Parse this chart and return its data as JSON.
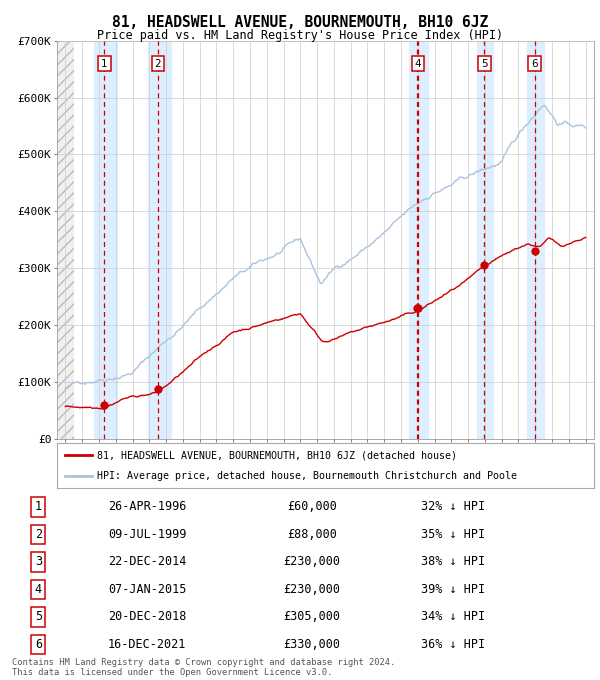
{
  "title": "81, HEADSWELL AVENUE, BOURNEMOUTH, BH10 6JZ",
  "subtitle": "Price paid vs. HM Land Registry's House Price Index (HPI)",
  "sales": [
    {
      "label": "1",
      "date": "1996-04-26",
      "price": 60000,
      "x": 1996.32
    },
    {
      "label": "2",
      "date": "1999-07-09",
      "price": 88000,
      "x": 1999.52
    },
    {
      "label": "3",
      "date": "2014-12-22",
      "price": 230000,
      "x": 2014.98
    },
    {
      "label": "4",
      "date": "2015-01-07",
      "price": 230000,
      "x": 2015.02
    },
    {
      "label": "5",
      "date": "2018-12-20",
      "price": 305000,
      "x": 2018.97
    },
    {
      "label": "6",
      "date": "2021-12-16",
      "price": 330000,
      "x": 2021.96
    }
  ],
  "shade_bands": [
    {
      "x_start": 1995.7,
      "x_end": 1997.1
    },
    {
      "x_start": 1998.9,
      "x_end": 2000.3
    },
    {
      "x_start": 2014.5,
      "x_end": 2015.6
    },
    {
      "x_start": 2018.5,
      "x_end": 2019.5
    },
    {
      "x_start": 2021.5,
      "x_end": 2022.5
    }
  ],
  "table_rows": [
    {
      "num": "1",
      "date": "26-APR-1996",
      "price": "£60,000",
      "pct": "32% ↓ HPI"
    },
    {
      "num": "2",
      "date": "09-JUL-1999",
      "price": "£88,000",
      "pct": "35% ↓ HPI"
    },
    {
      "num": "3",
      "date": "22-DEC-2014",
      "price": "£230,000",
      "pct": "38% ↓ HPI"
    },
    {
      "num": "4",
      "date": "07-JAN-2015",
      "price": "£230,000",
      "pct": "39% ↓ HPI"
    },
    {
      "num": "5",
      "date": "20-DEC-2018",
      "price": "£305,000",
      "pct": "34% ↓ HPI"
    },
    {
      "num": "6",
      "date": "16-DEC-2021",
      "price": "£330,000",
      "pct": "36% ↓ HPI"
    }
  ],
  "legend_line1": "81, HEADSWELL AVENUE, BOURNEMOUTH, BH10 6JZ (detached house)",
  "legend_line2": "HPI: Average price, detached house, Bournemouth Christchurch and Poole",
  "footer1": "Contains HM Land Registry data © Crown copyright and database right 2024.",
  "footer2": "This data is licensed under the Open Government Licence v3.0.",
  "hpi_color": "#aac4e0",
  "price_color": "#cc0000",
  "shade_color": "#ddeeff",
  "bg_color": "#ffffff",
  "grid_color": "#cccccc",
  "ylim": [
    0,
    700000
  ],
  "xlim": [
    1993.5,
    2025.5
  ],
  "yticks": [
    0,
    100000,
    200000,
    300000,
    400000,
    500000,
    600000,
    700000
  ],
  "ylabels": [
    "£0",
    "£100K",
    "£200K",
    "£300K",
    "£400K",
    "£500K",
    "£600K",
    "£700K"
  ]
}
